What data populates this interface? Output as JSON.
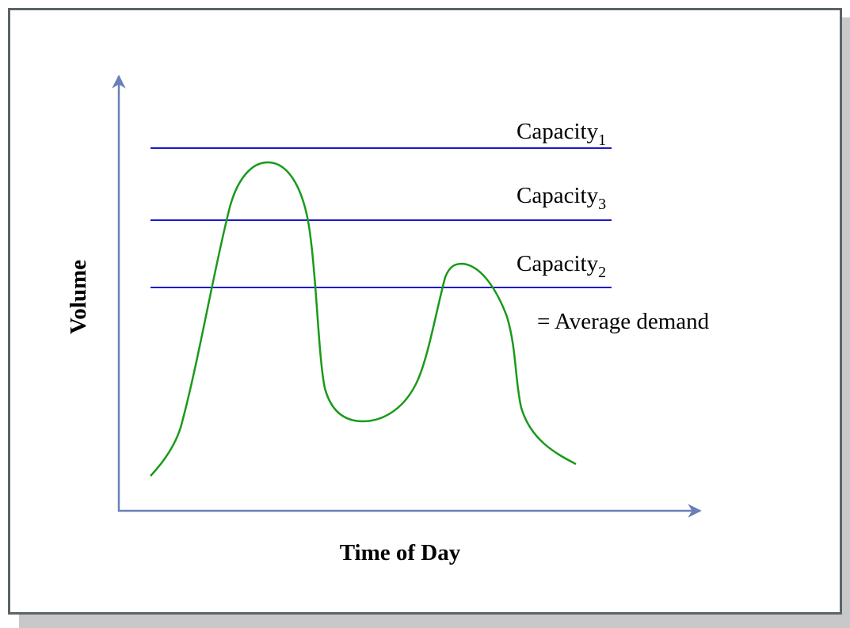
{
  "axes": {
    "x_label": "Time of Day",
    "y_label": "Volume"
  },
  "capacity_lines": [
    {
      "label": "Capacity",
      "subscript": "1"
    },
    {
      "label": "Capacity",
      "subscript": "3"
    },
    {
      "label": "Capacity",
      "subscript": "2"
    }
  ],
  "note": "= Average demand"
}
